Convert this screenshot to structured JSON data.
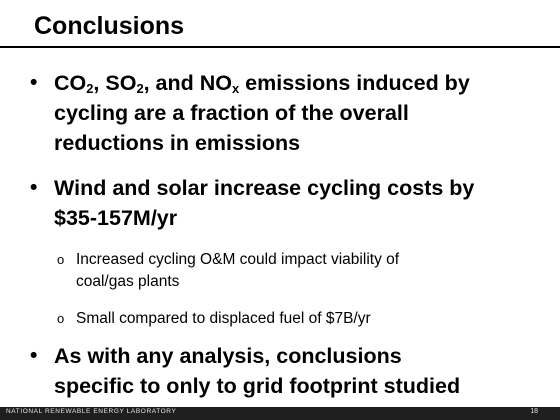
{
  "slide": {
    "title": "Conclusions",
    "bullet_1": {
      "line_1_a": "CO",
      "line_1_sub_a": "2",
      "line_1_b": ", SO",
      "line_1_sub_b": "2",
      "line_1_c": ", and NO",
      "line_1_sub_c": "x",
      "line_1_d": " emissions induced by",
      "line_2": "cycling are a fraction of the overall",
      "line_3": "reductions in emissions"
    },
    "bullet_2": {
      "line_1": "Wind and solar increase cycling costs by",
      "line_2": "$35-157M/yr"
    },
    "sub_bullet_1": {
      "line_1": "Increased cycling O&M could impact viability of",
      "line_2": "coal/gas plants"
    },
    "sub_bullet_2": {
      "line_1": "Small compared to displaced fuel of $7B/yr"
    },
    "bullet_3": {
      "line_1": "As with any analysis, conclusions",
      "line_2": "specific to only to grid footprint studied"
    },
    "bullet_glyph": "•",
    "sub_bullet_glyph": "o"
  },
  "footer": {
    "organization": "NATIONAL RENEWABLE ENERGY LABORATORY",
    "page_number": "18"
  }
}
